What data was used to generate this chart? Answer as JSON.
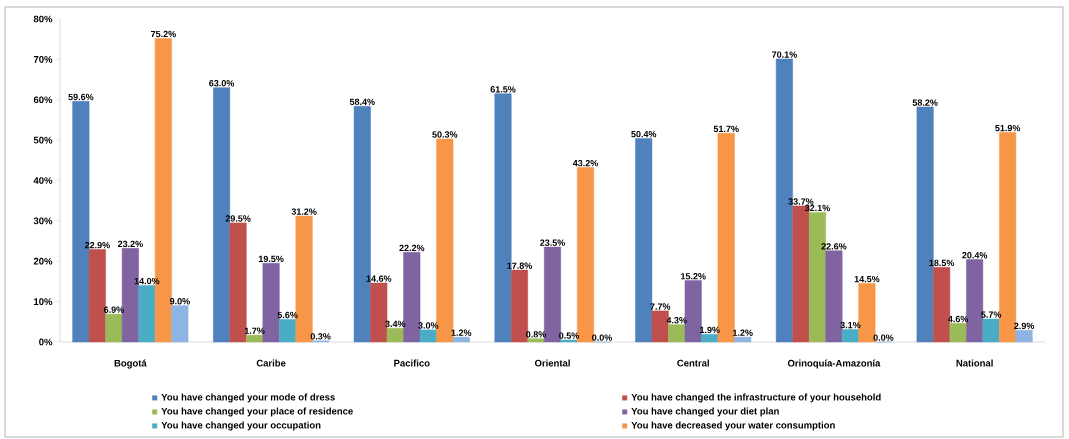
{
  "chart_data": {
    "type": "bar",
    "categories": [
      "Bogotá",
      "Caribe",
      "Pacifico",
      "Oriental",
      "Central",
      "Orinoquía-Amazonía",
      "National"
    ],
    "series": [
      {
        "name": "You have changed your mode of dress",
        "color": "#4f81bd",
        "values": [
          59.6,
          63.0,
          58.4,
          61.5,
          50.4,
          70.1,
          58.2
        ],
        "value_labels": [
          "59.6%",
          "63.0%",
          "58.4%",
          "61.5%",
          "50.4%",
          "70.1%",
          "58.2%"
        ]
      },
      {
        "name": "You have changed the infrastructure of your household",
        "color": "#c0504d",
        "values": [
          22.9,
          29.5,
          14.6,
          17.8,
          7.7,
          33.7,
          18.5
        ],
        "value_labels": [
          "22.9%",
          "29.5%",
          "14.6%",
          "17.8%",
          "7.7%",
          "33.7%",
          "18.5%"
        ]
      },
      {
        "name": "You have changed your place of residence",
        "color": "#9bbb59",
        "values": [
          6.9,
          1.7,
          3.4,
          0.8,
          4.3,
          32.1,
          4.6
        ],
        "value_labels": [
          "6.9%",
          "1.7%",
          "3.4%",
          "0.8%",
          "4.3%",
          "32.1%",
          "4.6%"
        ]
      },
      {
        "name": "You have changed your diet plan",
        "color": "#8064a2",
        "values": [
          23.2,
          19.5,
          22.2,
          23.5,
          15.2,
          22.6,
          20.4
        ],
        "value_labels": [
          "23.2%",
          "19.5%",
          "22.2%",
          "23.5%",
          "15.2%",
          "22.6%",
          "20.4%"
        ]
      },
      {
        "name": "You have changed your occupation",
        "color": "#4bacc6",
        "values": [
          14.0,
          5.6,
          3.0,
          0.5,
          1.9,
          3.1,
          5.7
        ],
        "value_labels": [
          "14.0%",
          "5.6%",
          "3.0%",
          "0.5%",
          "1.9%",
          "3.1%",
          "5.7%"
        ]
      },
      {
        "name": "You have decreased your water consumption",
        "color": "#f79646",
        "values": [
          75.2,
          31.2,
          50.3,
          43.2,
          51.7,
          14.5,
          51.9
        ],
        "value_labels": [
          "75.2%",
          "31.2%",
          "50.3%",
          "43.2%",
          "51.7%",
          "14.5%",
          "51.9%"
        ]
      },
      {
        "color": "#8eb4e3",
        "values": [
          9.0,
          0.3,
          1.2,
          0.0,
          1.2,
          0.0,
          2.9
        ],
        "value_labels": [
          "9.0%",
          "0.3%",
          "1.2%",
          "0.0%",
          "1.2%",
          "0.0%",
          "2.9%"
        ]
      }
    ],
    "ylim": [
      0,
      80
    ],
    "yticks": [
      {
        "value": 0,
        "label": "0%"
      },
      {
        "value": 10,
        "label": "10%"
      },
      {
        "value": 20,
        "label": "20%"
      },
      {
        "value": 30,
        "label": "30%"
      },
      {
        "value": 40,
        "label": "40%"
      },
      {
        "value": 50,
        "label": "50%"
      },
      {
        "value": 60,
        "label": "60%"
      },
      {
        "value": 70,
        "label": "70%"
      },
      {
        "value": 80,
        "label": "80%"
      }
    ],
    "legend": "bottom"
  }
}
